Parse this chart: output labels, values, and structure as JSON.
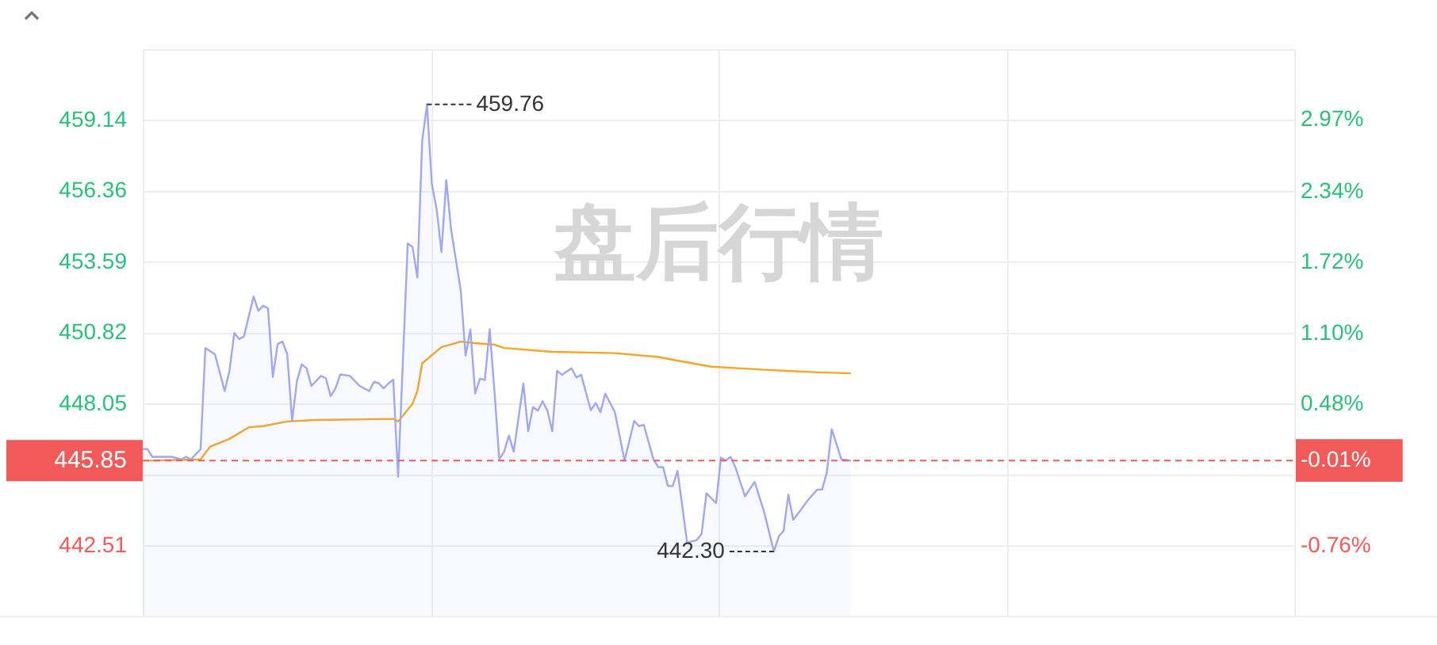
{
  "chart_data": {
    "type": "line",
    "categories": [
      null,
      null,
      null,
      null,
      null,
      null,
      null,
      null,
      null,
      null,
      null,
      null,
      null,
      null,
      null,
      null,
      null,
      null,
      null,
      null,
      null,
      null,
      null,
      null,
      null,
      null,
      null,
      null,
      null,
      null,
      null,
      null,
      null,
      null,
      null,
      null,
      null,
      null,
      null,
      null,
      null,
      null,
      null,
      null,
      null,
      null,
      null,
      null,
      null,
      null,
      null,
      null,
      null,
      null,
      null,
      null,
      null,
      null,
      null,
      null,
      null,
      null,
      null,
      null,
      null,
      null,
      null,
      null,
      null,
      null,
      null,
      null,
      null,
      null,
      null,
      null,
      null,
      null,
      null,
      null,
      null,
      null,
      null,
      null,
      null,
      null,
      null,
      null,
      null,
      null,
      null,
      null,
      null,
      null,
      null,
      null,
      null,
      null,
      null,
      null,
      null,
      null,
      null,
      null,
      null,
      null,
      null,
      null,
      null,
      null,
      null,
      null,
      null,
      null,
      null,
      null,
      null,
      null,
      null,
      null,
      null,
      null,
      null,
      null,
      null,
      null,
      null,
      null,
      null,
      null,
      null,
      null,
      null,
      null,
      null,
      null,
      null,
      null,
      null,
      null,
      null,
      null,
      null,
      null,
      null,
      null,
      null,
      null,
      null,
      null,
      null,
      null,
      null,
      null,
      null,
      null,
      null,
      null,
      null,
      null,
      null,
      null,
      null,
      null,
      null,
      null,
      null,
      null,
      null,
      null,
      null,
      null,
      null,
      null,
      null,
      null,
      null,
      null,
      null,
      null,
      null,
      null,
      null,
      null,
      null,
      null,
      null,
      null,
      null,
      null,
      null,
      null,
      null,
      null,
      null,
      null,
      null,
      null,
      null,
      null,
      null,
      null,
      null,
      null,
      null,
      null,
      null,
      null,
      null,
      null,
      null,
      null,
      null,
      null,
      null,
      null,
      null,
      null,
      null,
      null,
      null,
      null,
      null,
      null,
      null,
      null,
      null,
      null,
      null,
      null,
      null,
      null,
      null,
      null,
      null,
      null,
      null,
      null,
      null,
      null
    ],
    "ylim": [
      439.79,
      461.92
    ],
    "yticks": [
      442.51,
      {
        "value": 445.28,
        "label": null
      },
      448.05,
      450.82,
      453.59,
      456.36,
      459.14
    ],
    "y2lim": [
      -1.37,
      3.59
    ],
    "y2ticks": [
      {
        "value": -0.76,
        "label": "-0.76%"
      },
      {
        "value": -0.14,
        "label": null
      },
      {
        "value": -0.01,
        "label": "-0.01%"
      },
      {
        "value": 0.48,
        "label": "0.48%"
      },
      {
        "value": 1.1,
        "label": "1.10%"
      },
      {
        "value": 1.72,
        "label": "1.72%"
      },
      {
        "value": 2.34,
        "label": "2.34%"
      },
      {
        "value": 2.97,
        "label": "2.97%"
      }
    ],
    "tick_labels": "y",
    "grid": true,
    "series": [
      {
        "type": "area",
        "color": "#a0a8f0",
        "values": [
          446.3,
          446.3,
          446.0,
          null,
          null,
          null,
          446.0,
          null,
          445.9,
          446.0,
          445.9,
          null,
          446.3,
          450.25,
          null,
          450.0,
          null,
          448.57,
          449.36,
          450.84,
          450.6,
          450.7,
          null,
          452.26,
          451.7,
          451.9,
          451.8,
          449.12,
          450.4,
          450.5,
          450.0,
          447.4,
          448.96,
          449.61,
          449.46,
          448.77,
          null,
          449.16,
          449.07,
          448.37,
          448.67,
          449.22,
          null,
          449.16,
          null,
          448.77,
          null,
          448.57,
          448.93,
          448.87,
          448.67,
          448.87,
          449.01,
          445.22,
          null,
          454.33,
          454.19,
          453.0,
          458.33,
          459.76,
          456.65,
          455.67,
          454.0,
          456.81,
          454.88,
          null,
          452.5,
          449.95,
          450.98,
          448.47,
          449.06,
          449.0,
          450.98,
          448.57,
          445.9,
          446.2,
          446.83,
          446.2,
          null,
          448.86,
          447.0,
          447.94,
          447.8,
          448.17,
          447.8,
          447.0,
          449.36,
          449.2,
          null,
          449.46,
          449.1,
          449.2,
          null,
          447.82,
          448.1,
          447.74,
          448.47,
          null,
          447.74,
          null,
          445.85,
          null,
          447.4,
          447.2,
          447.25,
          null,
          445.9,
          445.6,
          445.6,
          444.86,
          444.86,
          445.45,
          null,
          442.65,
          null,
          442.75,
          443.0,
          444.58,
          null,
          444.19,
          445.97,
          445.85,
          446.0,
          445.6,
          null,
          444.46,
          null,
          445.02,
          null,
          443.83,
          null,
          442.3,
          442.89,
          443.1,
          444.52,
          443.54,
          null,
          444.03,
          444.3,
          null,
          444.72,
          444.72,
          445.41,
          447.08,
          null,
          445.9,
          null,
          445.85,
          null,
          null,
          null,
          null,
          null,
          null,
          null,
          null,
          null,
          null,
          null,
          null,
          null,
          null,
          null,
          null,
          null,
          null,
          null,
          null,
          null,
          null,
          null,
          null,
          null,
          null,
          null,
          null,
          null,
          null,
          null,
          null,
          null,
          null,
          null,
          null,
          null,
          null,
          null,
          null,
          null,
          null,
          null,
          null,
          null,
          null,
          null,
          null,
          null,
          null,
          null,
          null,
          null,
          null,
          null,
          null,
          null,
          null,
          null,
          null,
          null,
          null,
          null,
          null,
          null,
          null,
          null,
          null,
          null,
          null,
          null,
          null,
          null,
          null,
          null,
          null,
          null,
          null,
          null,
          null,
          null,
          null,
          null,
          null,
          null,
          null,
          null,
          null,
          null,
          null,
          null,
          null
        ]
      },
      {
        "type": "line",
        "color": "#f5a623",
        "values": [
          null,
          445.85,
          null,
          null,
          null,
          null,
          null,
          null,
          null,
          null,
          null,
          null,
          445.9,
          null,
          446.4,
          null,
          null,
          null,
          446.7,
          null,
          null,
          null,
          447.15,
          null,
          null,
          447.2,
          null,
          null,
          null,
          null,
          447.38,
          null,
          null,
          null,
          null,
          null,
          447.44,
          null,
          null,
          null,
          null,
          null,
          null,
          null,
          null,
          null,
          null,
          null,
          null,
          null,
          null,
          null,
          447.48,
          447.38,
          null,
          null,
          448.07,
          448.57,
          449.65,
          null,
          null,
          null,
          450.28,
          null,
          null,
          null,
          450.5,
          null,
          null,
          450.44,
          null,
          null,
          null,
          450.38,
          null,
          450.25,
          null,
          null,
          null,
          null,
          null,
          null,
          null,
          null,
          null,
          450.1,
          null,
          null,
          null,
          null,
          null,
          null,
          null,
          null,
          null,
          null,
          null,
          null,
          450.05,
          null,
          null,
          null,
          null,
          null,
          null,
          null,
          null,
          449.9,
          null,
          null,
          null,
          null,
          449.72,
          null,
          null,
          null,
          null,
          null,
          449.52,
          null,
          null,
          null,
          null,
          null,
          null,
          null,
          null,
          null,
          null,
          449.4,
          null,
          null,
          null,
          null,
          null,
          null,
          null,
          null,
          null,
          null,
          449.3,
          null,
          null,
          null,
          null,
          null,
          null,
          449.26,
          null,
          null,
          null,
          null,
          null,
          null,
          null,
          null,
          null,
          null,
          null,
          null,
          null,
          null,
          null,
          null,
          null,
          null,
          null,
          null,
          null,
          null,
          null,
          null,
          null,
          null,
          null,
          null,
          null,
          null,
          null,
          null,
          null,
          null,
          null,
          null,
          null,
          null,
          null,
          null,
          null,
          null,
          null,
          null,
          null,
          null,
          null,
          null,
          null,
          null,
          null,
          null,
          null,
          null,
          null,
          null,
          null,
          null,
          null,
          null,
          null,
          null,
          null,
          null,
          null,
          null,
          null,
          null,
          null,
          null,
          null,
          null,
          null,
          null,
          null,
          null,
          null,
          null,
          null,
          null,
          null,
          null,
          null,
          null,
          null,
          null,
          null,
          null,
          null,
          null,
          null,
          null
        ]
      }
    ],
    "ref_lines": [
      {
        "axis": "y",
        "value": 445.85,
        "label": "445.85",
        "color": "#f25a5a",
        "line_style": "dashed"
      }
    ],
    "annotations": [
      "盘后行情",
      "459.76",
      "442.30"
    ]
  }
}
